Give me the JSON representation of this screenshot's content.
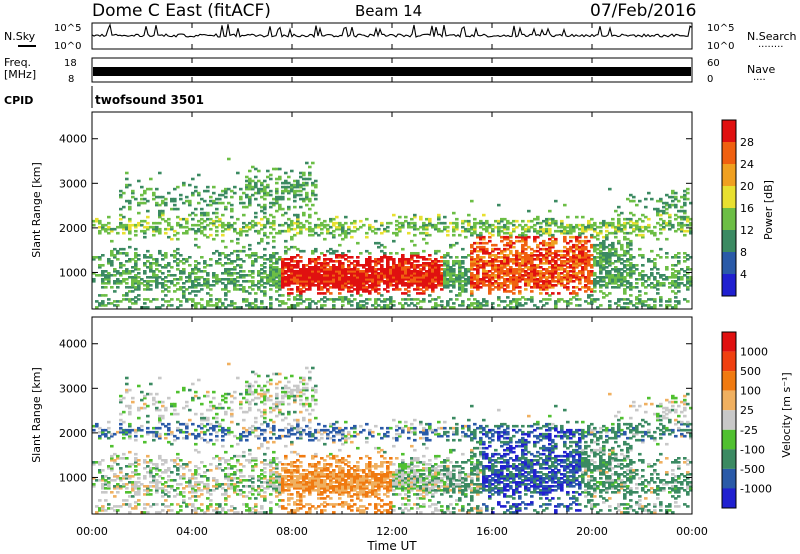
{
  "header": {
    "station": "Dome C East (fitACF)",
    "beam": "Beam 14",
    "date": "07/Feb/2016"
  },
  "panels": {
    "nsky": {
      "label": "N.Sky",
      "ticks": [
        "10^5",
        "10^0"
      ],
      "right_label": "N.Search",
      "right_dots": "........",
      "right_ticks": [
        "10^5",
        "10^0"
      ]
    },
    "freq": {
      "label1": "Freq.",
      "label2": "[MHz]",
      "ticks": [
        "18",
        "8"
      ],
      "right_label": "Nave",
      "right_dots": "....",
      "right_ticks": [
        "60",
        "0"
      ]
    },
    "cpid": {
      "label": "CPID",
      "value": "twofsound 3501"
    }
  },
  "colors": {
    "power": [
      "#2020d0",
      "#2a5aa8",
      "#3b8a62",
      "#6cbe45",
      "#e8e030",
      "#f0a020",
      "#f06010",
      "#e01010"
    ],
    "velocity": [
      "#e01010",
      "#f04010",
      "#f07a10",
      "#f0b060",
      "#c8c8c8",
      "#50c030",
      "#3b8a62",
      "#2a5aa8",
      "#2020d0"
    ]
  },
  "chart_data": [
    {
      "type": "heatmap",
      "name": "power",
      "ylabel": "Slant Range [km]",
      "ylim": [
        180,
        4600
      ],
      "yticks": [
        1000,
        2000,
        3000,
        4000
      ],
      "colorbar_label": "Power [dB]",
      "colorbar_ticks": [
        "4",
        "8",
        "12",
        "16",
        "20",
        "24",
        "28"
      ],
      "clim": [
        0,
        30
      ]
    },
    {
      "type": "heatmap",
      "name": "velocity",
      "ylabel": "Slant Range [km]",
      "ylim": [
        180,
        4600
      ],
      "yticks": [
        1000,
        2000,
        3000,
        4000
      ],
      "colorbar_label": "Velocity [m s⁻¹]",
      "colorbar_ticks": [
        "1000",
        "500",
        "100",
        "25",
        "-25",
        "-100",
        "-500",
        "-1000"
      ]
    }
  ],
  "xaxis": {
    "label": "Time UT",
    "ticks": [
      "00:00",
      "04:00",
      "08:00",
      "12:00",
      "16:00",
      "20:00",
      "00:00"
    ],
    "range_hours": [
      0,
      24
    ]
  }
}
